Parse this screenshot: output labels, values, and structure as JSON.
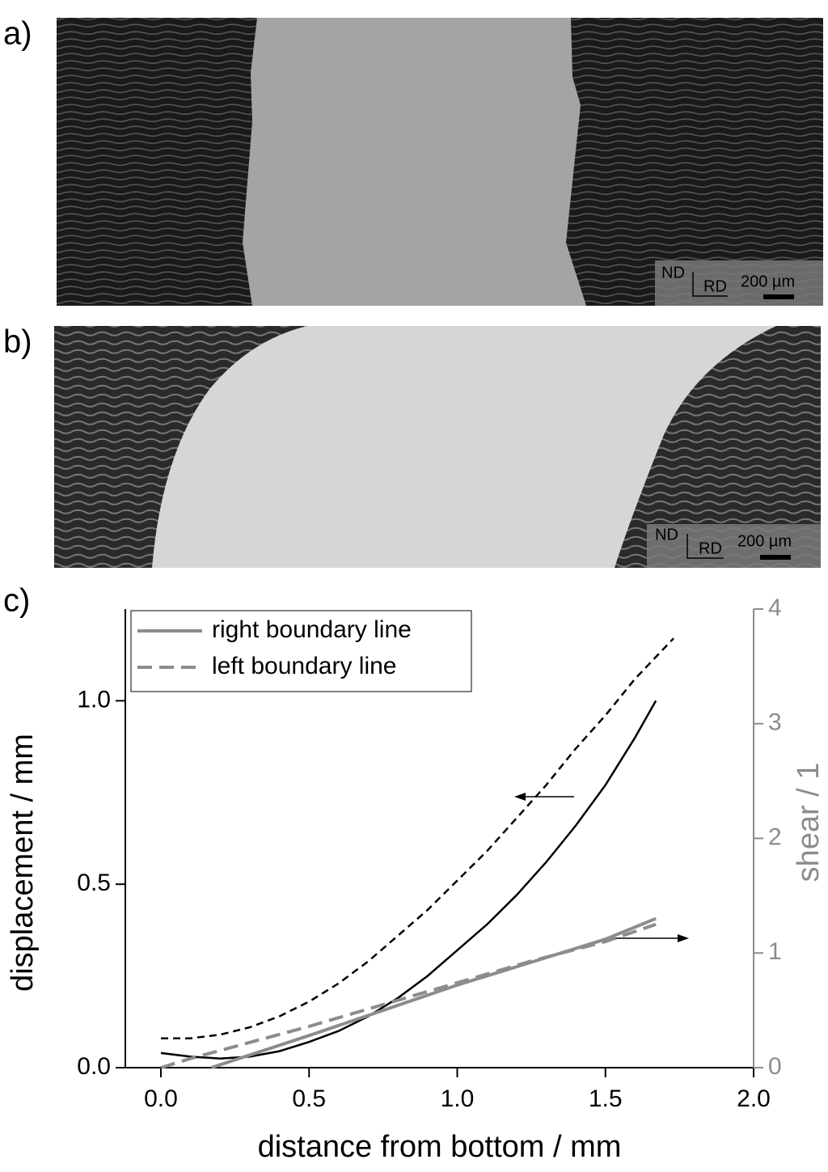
{
  "panels": [
    {
      "label": "a)",
      "nd": "ND",
      "rd": "RD",
      "scale": "200 µm"
    },
    {
      "label": "b)",
      "nd": "ND",
      "rd": "RD",
      "scale": "200 µm"
    }
  ],
  "panel_c_label": "c)",
  "chart_data": {
    "type": "line",
    "xlabel": "distance from bottom / mm",
    "ylabel": "displacement / mm",
    "y2label": "shear / 1",
    "xlim": [
      -0.12,
      2.0
    ],
    "ylim": [
      0,
      1.25
    ],
    "y2lim": [
      0,
      4
    ],
    "xticks": [
      {
        "value": 0,
        "label": "0.0"
      },
      0.5,
      {
        "value": 1,
        "label": "1.0"
      },
      1.5,
      {
        "value": 2,
        "label": "2.0"
      }
    ],
    "yticks": [
      {
        "value": 0,
        "label": "0.0"
      },
      0.5,
      {
        "value": 1,
        "label": "1.0"
      }
    ],
    "y2ticks": [
      0,
      1,
      2,
      3,
      4
    ],
    "axis_color": "#000000",
    "y2_axis_color": "#8c8c8c",
    "series": [
      {
        "color": "#000000",
        "dash": false,
        "x": [
          0,
          0.1,
          0.2,
          0.3,
          0.4,
          0.5,
          0.6,
          0.7,
          0.8,
          0.9,
          1.0,
          1.1,
          1.2,
          1.3,
          1.4,
          1.5,
          1.6,
          1.67
        ],
        "values": [
          0.04,
          0.03,
          0.025,
          0.03,
          0.045,
          0.07,
          0.1,
          0.14,
          0.19,
          0.25,
          0.32,
          0.39,
          0.47,
          0.56,
          0.66,
          0.77,
          0.9,
          1.0
        ]
      },
      {
        "color": "#000000",
        "dash": true,
        "x": [
          0,
          0.1,
          0.2,
          0.3,
          0.4,
          0.5,
          0.6,
          0.7,
          0.8,
          0.9,
          1.0,
          1.1,
          1.2,
          1.3,
          1.4,
          1.5,
          1.6,
          1.73
        ],
        "values": [
          0.08,
          0.08,
          0.09,
          0.11,
          0.14,
          0.18,
          0.23,
          0.29,
          0.36,
          0.43,
          0.51,
          0.59,
          0.68,
          0.77,
          0.87,
          0.96,
          1.06,
          1.17
        ]
      },
      {
        "name": "right boundary line",
        "color": "#8c8c8c",
        "dash": false,
        "axis": "y2",
        "x": [
          0.17,
          0.5,
          0.75,
          1.0,
          1.25,
          1.5,
          1.67
        ],
        "values": [
          0,
          0.28,
          0.5,
          0.72,
          0.92,
          1.12,
          1.3
        ]
      },
      {
        "name": "left boundary line",
        "color": "#8c8c8c",
        "dash": true,
        "axis": "y2",
        "x": [
          0,
          0.1,
          0.3,
          0.5,
          0.75,
          1.0,
          1.25,
          1.5,
          1.67
        ],
        "values": [
          0,
          0.08,
          0.22,
          0.36,
          0.55,
          0.74,
          0.93,
          1.1,
          1.25
        ]
      }
    ],
    "legend": "top-left"
  }
}
